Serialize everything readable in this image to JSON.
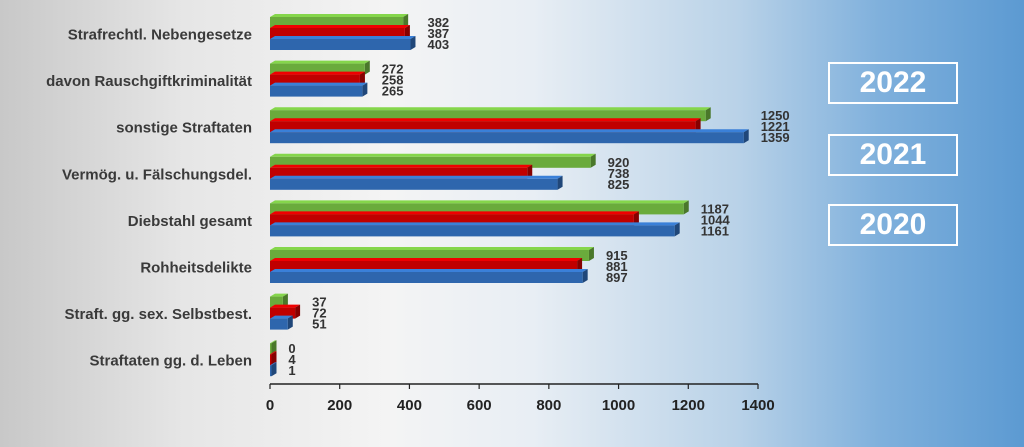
{
  "chart_data": {
    "type": "bar",
    "orientation": "horizontal",
    "categories": [
      "Strafrechtl. Nebengesetze",
      "davon Rauschgiftkriminalität",
      "sonstige Straftaten",
      "Vermög. u. Fälschungsdel.",
      "Diebstahl gesamt",
      "Rohheitsdelikte",
      "Straft. gg. sex. Selbstbest.",
      "Straftaten gg. d. Leben"
    ],
    "series": [
      {
        "name": "2022",
        "color": "#6aab3c",
        "values": [
          382,
          272,
          1250,
          920,
          1187,
          915,
          37,
          0
        ]
      },
      {
        "name": "2021",
        "color": "#c00000",
        "values": [
          387,
          258,
          1221,
          738,
          1044,
          881,
          72,
          4
        ]
      },
      {
        "name": "2020",
        "color": "#2e66ad",
        "values": [
          403,
          265,
          1359,
          825,
          1161,
          897,
          51,
          1
        ]
      }
    ],
    "xlim": [
      0,
      1400
    ],
    "xticks": [
      0,
      200,
      400,
      600,
      800,
      1000,
      1200,
      1400
    ],
    "legend_position": "right",
    "grid": false
  }
}
